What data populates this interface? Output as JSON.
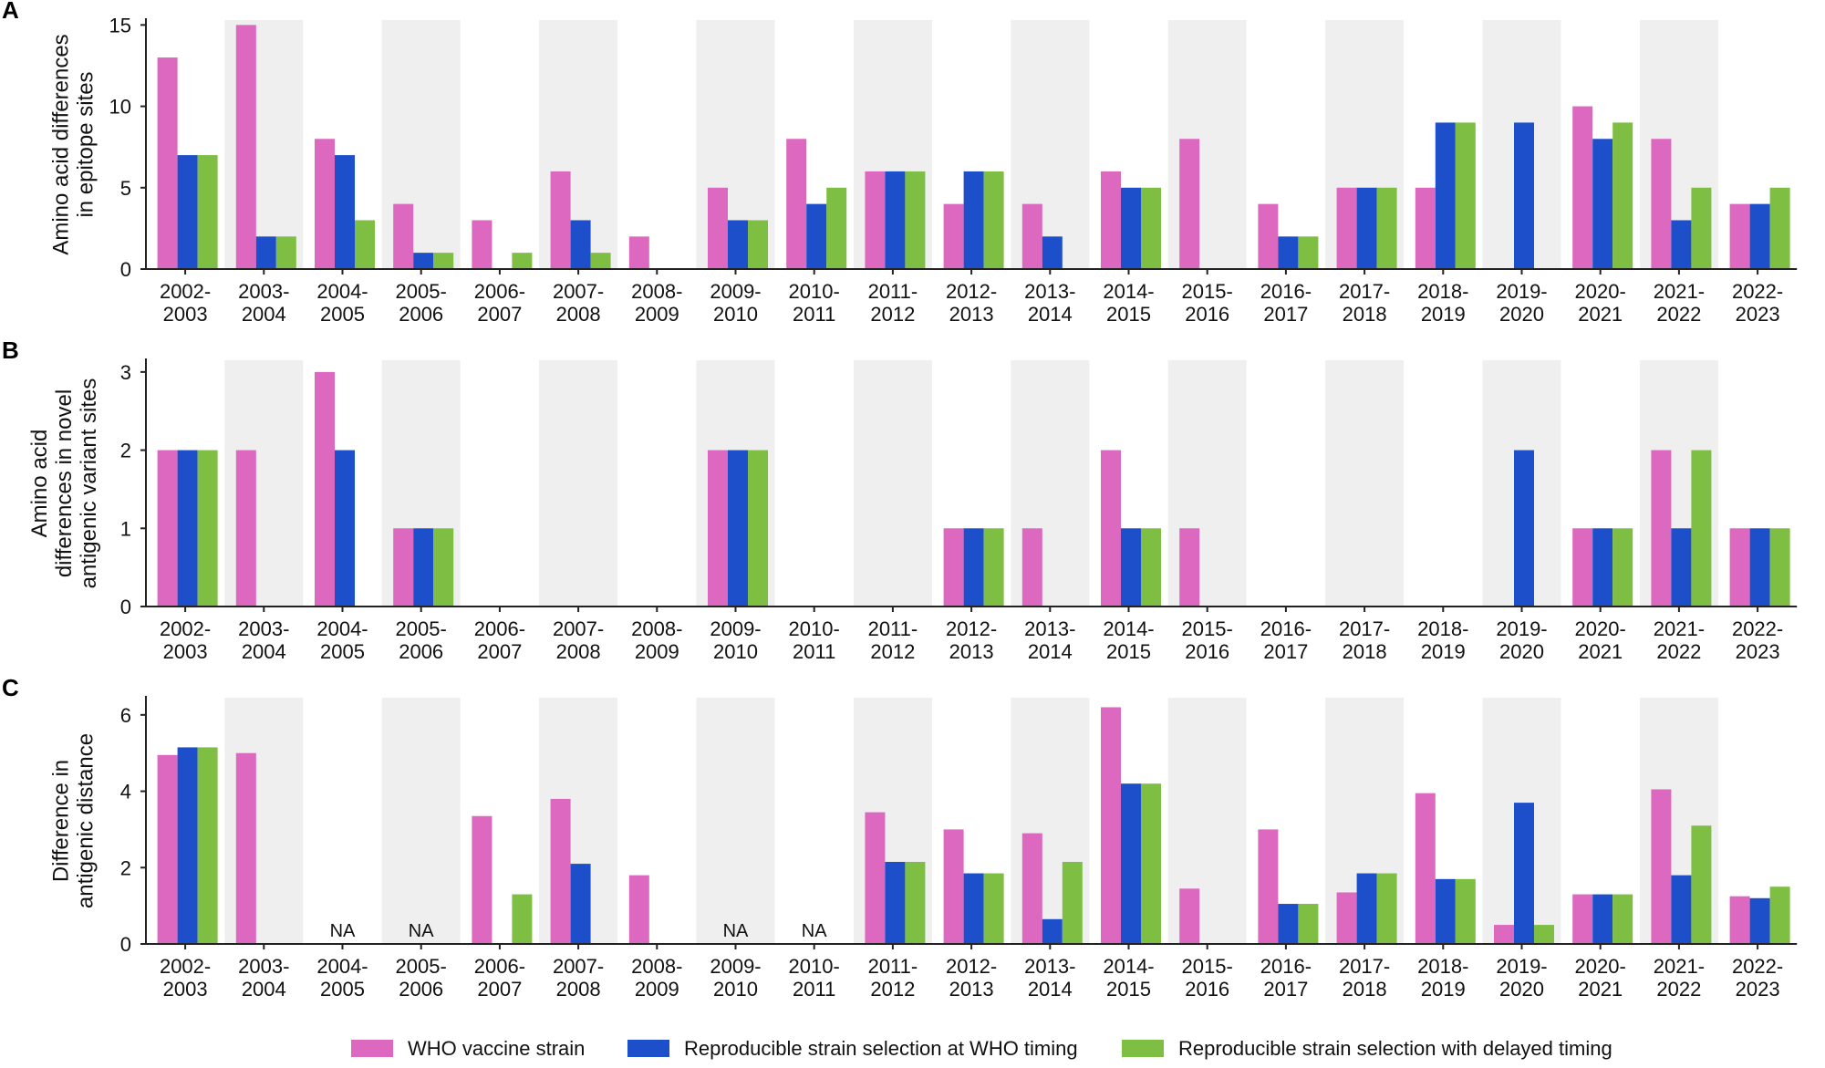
{
  "colors": {
    "who": "#DD68BF",
    "timing": "#1E4FCB",
    "delayed": "#7DBE43",
    "band": "#EFEFEF",
    "axis": "#222222"
  },
  "legend": [
    {
      "key": "who",
      "label": "WHO vaccine strain"
    },
    {
      "key": "timing",
      "label": "Reproducible strain selection at WHO timing"
    },
    {
      "key": "delayed",
      "label": "Reproducible strain selection with delayed timing"
    }
  ],
  "chart_data": [
    {
      "type": "bar",
      "panel": "A",
      "ylabel": [
        "Amino acid differences",
        "in epitope sites"
      ],
      "ylim": [
        0,
        15.3
      ],
      "yticks": [
        0,
        5,
        10,
        15
      ],
      "categories": [
        [
          "2002-",
          "2003"
        ],
        [
          "2003-",
          "2004"
        ],
        [
          "2004-",
          "2005"
        ],
        [
          "2005-",
          "2006"
        ],
        [
          "2006-",
          "2007"
        ],
        [
          "2007-",
          "2008"
        ],
        [
          "2008-",
          "2009"
        ],
        [
          "2009-",
          "2010"
        ],
        [
          "2010-",
          "2011"
        ],
        [
          "2011-",
          "2012"
        ],
        [
          "2012-",
          "2013"
        ],
        [
          "2013-",
          "2014"
        ],
        [
          "2014-",
          "2015"
        ],
        [
          "2015-",
          "2016"
        ],
        [
          "2016-",
          "2017"
        ],
        [
          "2017-",
          "2018"
        ],
        [
          "2018-",
          "2019"
        ],
        [
          "2019-",
          "2020"
        ],
        [
          "2020-",
          "2021"
        ],
        [
          "2021-",
          "2022"
        ],
        [
          "2022-",
          "2023"
        ]
      ],
      "series": [
        {
          "key": "who",
          "name": "WHO vaccine strain",
          "values": [
            13,
            15,
            8,
            4,
            3,
            6,
            2,
            5,
            8,
            6,
            4,
            4,
            6,
            8,
            4,
            5,
            5,
            0,
            10,
            8,
            4
          ]
        },
        {
          "key": "timing",
          "name": "Reproducible strain selection at WHO timing",
          "values": [
            7,
            2,
            7,
            1,
            0,
            3,
            0,
            3,
            4,
            6,
            6,
            2,
            5,
            0,
            2,
            5,
            9,
            9,
            8,
            3,
            4
          ]
        },
        {
          "key": "delayed",
          "name": "Reproducible strain selection with delayed timing",
          "values": [
            7,
            2,
            3,
            1,
            1,
            1,
            0,
            3,
            5,
            6,
            6,
            0,
            5,
            0,
            2,
            5,
            9,
            0,
            9,
            5,
            5
          ]
        }
      ],
      "na": []
    },
    {
      "type": "bar",
      "panel": "B",
      "ylabel": [
        "Amino acid",
        "differences in novel",
        "antigenic variant sites"
      ],
      "ylim": [
        0,
        3.15
      ],
      "yticks": [
        0,
        1,
        2,
        3
      ],
      "categories": [
        [
          "2002-",
          "2003"
        ],
        [
          "2003-",
          "2004"
        ],
        [
          "2004-",
          "2005"
        ],
        [
          "2005-",
          "2006"
        ],
        [
          "2006-",
          "2007"
        ],
        [
          "2007-",
          "2008"
        ],
        [
          "2008-",
          "2009"
        ],
        [
          "2009-",
          "2010"
        ],
        [
          "2010-",
          "2011"
        ],
        [
          "2011-",
          "2012"
        ],
        [
          "2012-",
          "2013"
        ],
        [
          "2013-",
          "2014"
        ],
        [
          "2014-",
          "2015"
        ],
        [
          "2015-",
          "2016"
        ],
        [
          "2016-",
          "2017"
        ],
        [
          "2017-",
          "2018"
        ],
        [
          "2018-",
          "2019"
        ],
        [
          "2019-",
          "2020"
        ],
        [
          "2020-",
          "2021"
        ],
        [
          "2021-",
          "2022"
        ],
        [
          "2022-",
          "2023"
        ]
      ],
      "series": [
        {
          "key": "who",
          "name": "WHO vaccine strain",
          "values": [
            2,
            2,
            3,
            1,
            0,
            0,
            0,
            2,
            0,
            0,
            1,
            1,
            2,
            1,
            0,
            0,
            0,
            0,
            1,
            2,
            1
          ]
        },
        {
          "key": "timing",
          "name": "Reproducible strain selection at WHO timing",
          "values": [
            2,
            0,
            2,
            1,
            0,
            0,
            0,
            2,
            0,
            0,
            1,
            0,
            1,
            0,
            0,
            0,
            0,
            2,
            1,
            1,
            1
          ]
        },
        {
          "key": "delayed",
          "name": "Reproducible strain selection with delayed timing",
          "values": [
            2,
            0,
            0,
            1,
            0,
            0,
            0,
            2,
            0,
            0,
            1,
            0,
            1,
            0,
            0,
            0,
            0,
            0,
            1,
            2,
            1
          ]
        }
      ],
      "na": []
    },
    {
      "type": "bar",
      "panel": "C",
      "ylabel": [
        "Difference in",
        "antigenic distance"
      ],
      "ylim": [
        0,
        6.45
      ],
      "yticks": [
        0,
        2,
        4,
        6
      ],
      "categories": [
        [
          "2002-",
          "2003"
        ],
        [
          "2003-",
          "2004"
        ],
        [
          "2004-",
          "2005"
        ],
        [
          "2005-",
          "2006"
        ],
        [
          "2006-",
          "2007"
        ],
        [
          "2007-",
          "2008"
        ],
        [
          "2008-",
          "2009"
        ],
        [
          "2009-",
          "2010"
        ],
        [
          "2010-",
          "2011"
        ],
        [
          "2011-",
          "2012"
        ],
        [
          "2012-",
          "2013"
        ],
        [
          "2013-",
          "2014"
        ],
        [
          "2014-",
          "2015"
        ],
        [
          "2015-",
          "2016"
        ],
        [
          "2016-",
          "2017"
        ],
        [
          "2017-",
          "2018"
        ],
        [
          "2018-",
          "2019"
        ],
        [
          "2019-",
          "2020"
        ],
        [
          "2020-",
          "2021"
        ],
        [
          "2021-",
          "2022"
        ],
        [
          "2022-",
          "2023"
        ]
      ],
      "series": [
        {
          "key": "who",
          "name": "WHO vaccine strain",
          "values": [
            4.95,
            5.0,
            0,
            0,
            3.35,
            3.8,
            1.8,
            0,
            0,
            3.45,
            3.0,
            2.9,
            6.2,
            1.45,
            3.0,
            1.35,
            3.95,
            0.5,
            1.3,
            4.05,
            1.25
          ]
        },
        {
          "key": "timing",
          "name": "Reproducible strain selection at WHO timing",
          "values": [
            5.15,
            0,
            0,
            0,
            0,
            2.1,
            0,
            0,
            0,
            2.15,
            1.85,
            0.65,
            4.2,
            0,
            1.05,
            1.85,
            1.7,
            3.7,
            1.3,
            1.8,
            1.2
          ]
        },
        {
          "key": "delayed",
          "name": "Reproducible strain selection with delayed timing",
          "values": [
            5.15,
            0,
            0,
            0,
            1.3,
            0,
            0,
            0,
            0,
            2.15,
            1.85,
            2.15,
            4.2,
            0,
            1.05,
            1.85,
            1.7,
            0.5,
            1.3,
            3.1,
            1.5
          ]
        }
      ],
      "na": [
        {
          "index": 2,
          "text": "NA"
        },
        {
          "index": 3,
          "text": "NA"
        },
        {
          "index": 7,
          "text": "NA"
        },
        {
          "index": 8,
          "text": "NA"
        }
      ]
    }
  ]
}
